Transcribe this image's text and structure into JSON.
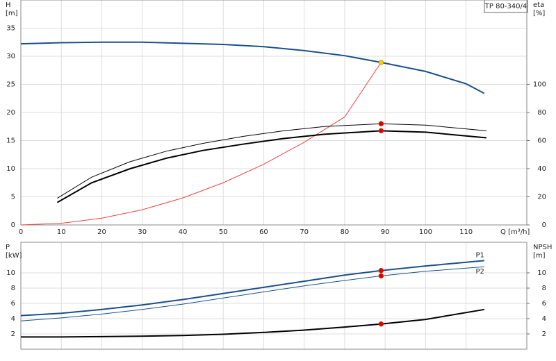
{
  "model": "TP 80-340/4",
  "chart_data": [
    {
      "type": "line",
      "ylabel": "H",
      "yunit": "[m]",
      "y2label": "eta",
      "y2unit": "[%]",
      "xlabel": "Q [m³/h]",
      "xlim": [
        0,
        125
      ],
      "xticks": [
        0,
        10,
        20,
        30,
        40,
        50,
        60,
        70,
        80,
        90,
        100,
        110
      ],
      "ylim": [
        0,
        40
      ],
      "yticks": [
        0,
        5,
        10,
        15,
        20,
        25,
        30,
        35
      ],
      "y2lim": [
        0,
        160
      ],
      "y2ticks": [
        0,
        20,
        40,
        60,
        80,
        100
      ],
      "grid": true,
      "series": [
        {
          "color": "#1a4f8a",
          "width": 2,
          "x": [
            0,
            10,
            20,
            30,
            40,
            50,
            60,
            70,
            80,
            89,
            100,
            110,
            114.5
          ],
          "values": [
            32.2,
            32.4,
            32.5,
            32.5,
            32.3,
            32.1,
            31.7,
            31,
            30.1,
            28.9,
            27.3,
            25.1,
            23.4
          ]
        },
        {
          "color": "#f04040",
          "width": 1,
          "x": [
            0,
            10,
            20,
            30,
            40,
            50,
            60,
            70,
            80,
            89
          ],
          "values": [
            0,
            0.3,
            1.2,
            2.7,
            4.8,
            7.5,
            10.8,
            14.7,
            19.2,
            28.9
          ]
        },
        {
          "color": "#000000",
          "width": 1,
          "axis": "y2",
          "x": [
            9,
            17.5,
            27,
            36,
            45,
            55,
            65,
            75,
            89,
            100,
            115
          ],
          "values": [
            19,
            34,
            45,
            52.5,
            58,
            63,
            67,
            70,
            72,
            71,
            67
          ]
        },
        {
          "color": "#000000",
          "width": 2,
          "axis": "y2",
          "x": [
            9,
            17.5,
            27,
            36,
            45,
            55,
            65,
            75,
            89,
            100,
            115
          ],
          "values": [
            16,
            30,
            40,
            47.5,
            53,
            57.5,
            61.5,
            64.5,
            67,
            66,
            62
          ]
        },
        {
          "color": "#ffcc00",
          "marker": true,
          "x": [
            89
          ],
          "values": [
            28.9
          ]
        },
        {
          "color": "#e00000",
          "marker": true,
          "axis": "y2",
          "x": [
            89,
            89
          ],
          "values": [
            72,
            67
          ]
        }
      ]
    },
    {
      "type": "line",
      "ylabel": "P",
      "yunit": "[kW]",
      "y2label": "NPSH",
      "y2unit": "[m]",
      "xlim": [
        0,
        125
      ],
      "xticks": [
        0,
        10,
        20,
        30,
        40,
        50,
        60,
        70,
        80,
        90,
        100,
        110
      ],
      "ylim": [
        0,
        14
      ],
      "yticks": [
        2,
        4,
        6,
        8,
        10
      ],
      "y2lim": [
        0,
        14
      ],
      "y2ticks": [
        2,
        4,
        6,
        8,
        10
      ],
      "grid": true,
      "series": [
        {
          "name": "P1",
          "color": "#1a4f8a",
          "width": 2,
          "x": [
            0,
            10,
            20,
            30,
            40,
            50,
            60,
            70,
            80,
            89,
            100,
            114.5
          ],
          "values": [
            4.4,
            4.7,
            5.2,
            5.8,
            6.5,
            7.3,
            8.1,
            8.9,
            9.7,
            10.3,
            10.9,
            11.6
          ]
        },
        {
          "name": "P2",
          "color": "#1a4f8a",
          "width": 1,
          "x": [
            0,
            10,
            20,
            30,
            40,
            50,
            60,
            70,
            80,
            89,
            100,
            114.5
          ],
          "values": [
            3.7,
            4.1,
            4.6,
            5.2,
            5.9,
            6.7,
            7.5,
            8.3,
            9.0,
            9.6,
            10.2,
            10.8
          ]
        },
        {
          "color": "#000000",
          "width": 2,
          "axis": "y2",
          "x": [
            0,
            10,
            20,
            30,
            40,
            50,
            60,
            70,
            80,
            89,
            100,
            114.5
          ],
          "values": [
            1.6,
            1.6,
            1.65,
            1.7,
            1.8,
            1.95,
            2.2,
            2.5,
            2.9,
            3.3,
            3.9,
            5.2
          ]
        },
        {
          "color": "#e00000",
          "marker": true,
          "x": [
            89,
            89
          ],
          "values": [
            10.3,
            9.6
          ]
        },
        {
          "color": "#e00000",
          "marker": true,
          "axis": "y2",
          "x": [
            89
          ],
          "values": [
            3.3
          ]
        }
      ]
    }
  ]
}
